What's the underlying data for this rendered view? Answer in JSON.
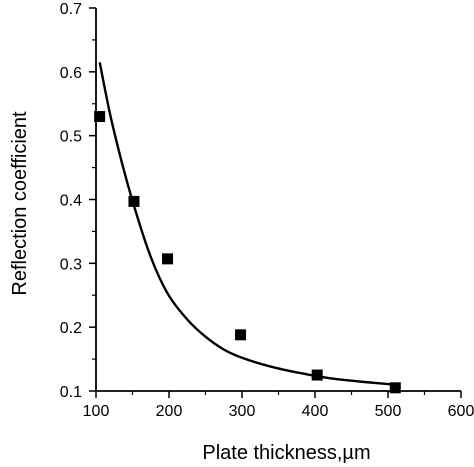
{
  "chart_data": {
    "type": "scatter",
    "title": "",
    "xlabel": "Plate thickness,µm",
    "ylabel": "Reflection coefficient",
    "xlim": [
      100,
      600
    ],
    "ylim": [
      0.1,
      0.7
    ],
    "xticks": [
      "100",
      "200",
      "300",
      "400",
      "500",
      "600"
    ],
    "yticks": [
      "0.1",
      "0.2",
      "0.3",
      "0.4",
      "0.5",
      "0.6",
      "0.7"
    ],
    "grid": false,
    "legend": "none",
    "series": [
      {
        "kind": "scatter",
        "marker": "square",
        "color": "#000000",
        "x": [
          105,
          152,
          198,
          298,
          403,
          510
        ],
        "y": [
          0.53,
          0.397,
          0.307,
          0.188,
          0.125,
          0.105
        ]
      },
      {
        "kind": "line",
        "color": "#000000",
        "x": [
          105,
          120,
          135,
          152,
          175,
          198,
          225,
          250,
          275,
          300,
          340,
          380,
          420,
          460,
          510
        ],
        "y": [
          0.615,
          0.53,
          0.46,
          0.39,
          0.31,
          0.253,
          0.212,
          0.185,
          0.165,
          0.152,
          0.138,
          0.128,
          0.12,
          0.115,
          0.11
        ]
      }
    ]
  }
}
